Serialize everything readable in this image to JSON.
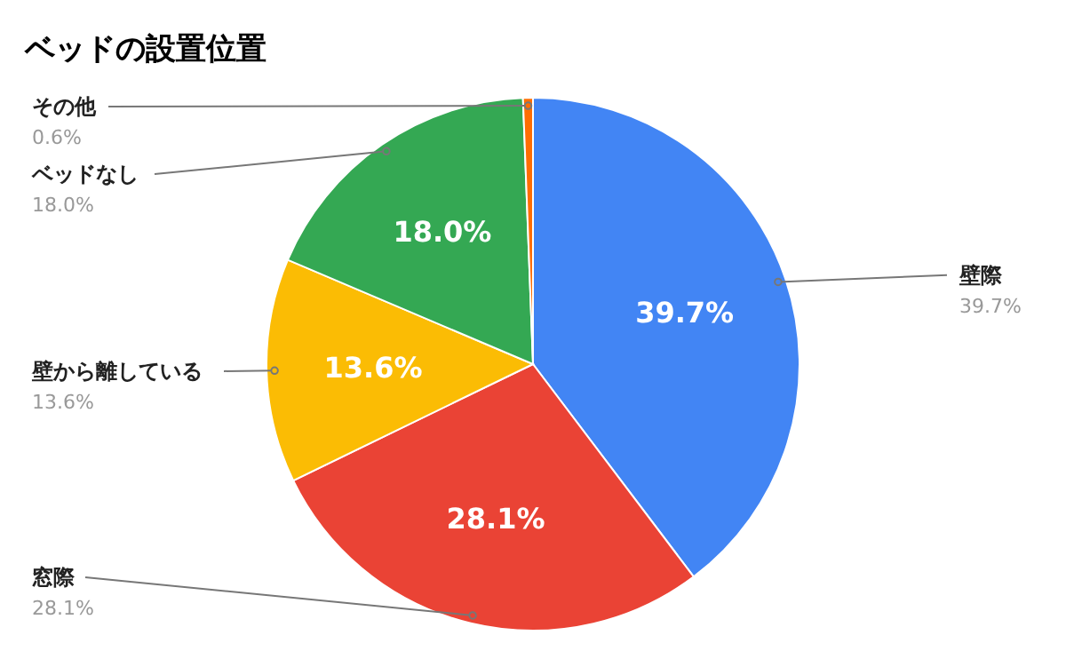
{
  "chart_data": {
    "type": "pie",
    "title": "ベッドの設置位置",
    "categories": [
      "壁際",
      "窓際",
      "壁から離している",
      "ベッドなし",
      "その他"
    ],
    "values": [
      39.7,
      28.1,
      13.6,
      18.0,
      0.6
    ],
    "colors": [
      "#4285f4",
      "#ea4335",
      "#fbbc04",
      "#34a853",
      "#ff6d01"
    ],
    "value_labels": [
      "39.7%",
      "28.1%",
      "13.6%",
      "18.0%",
      "0.6%"
    ]
  }
}
